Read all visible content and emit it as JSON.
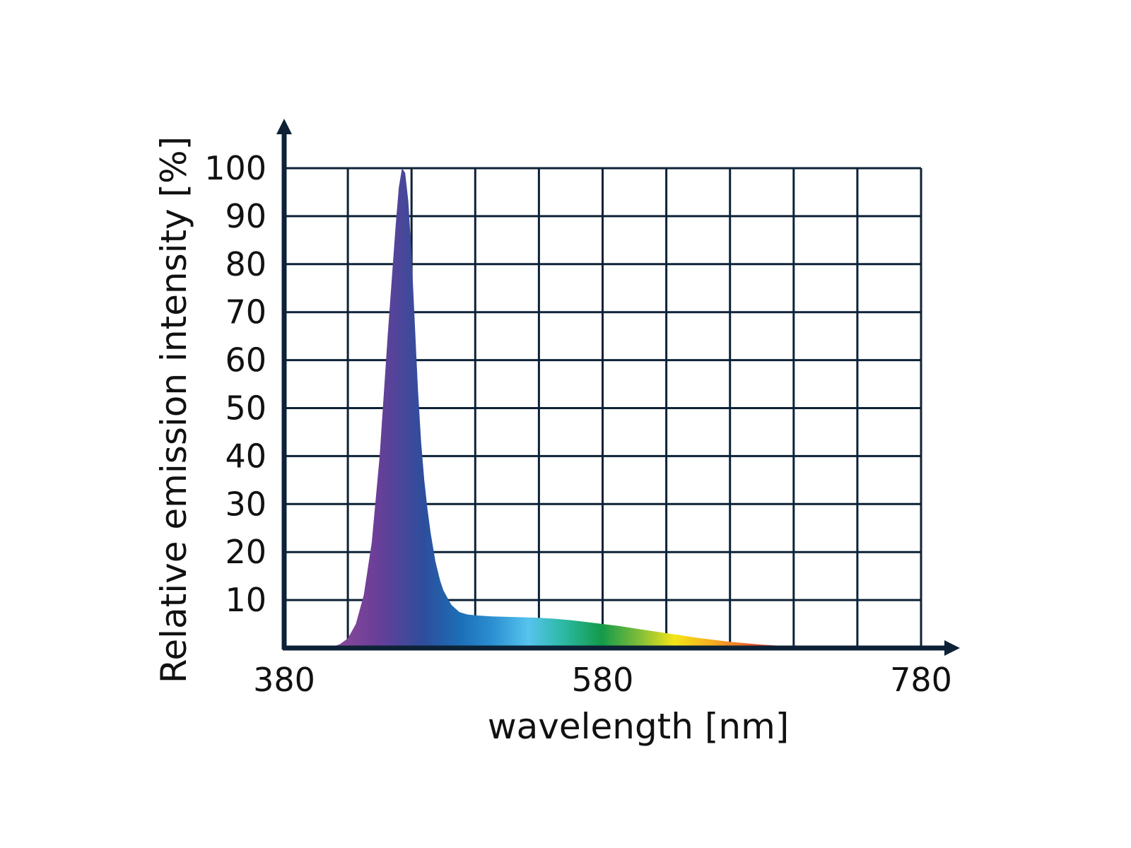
{
  "colors": {
    "axis": "#0d2236",
    "grid": "#0d2236",
    "text": "#111111",
    "spectrum": [
      {
        "offset": 0.0,
        "color": "#8a4a9a"
      },
      {
        "offset": 0.08,
        "color": "#6a3e98"
      },
      {
        "offset": 0.17,
        "color": "#2d4e9c"
      },
      {
        "offset": 0.24,
        "color": "#1c6fb6"
      },
      {
        "offset": 0.3,
        "color": "#2b8ed0"
      },
      {
        "offset": 0.37,
        "color": "#56c4ee"
      },
      {
        "offset": 0.44,
        "color": "#2bb8a0"
      },
      {
        "offset": 0.51,
        "color": "#139a4a"
      },
      {
        "offset": 0.58,
        "color": "#7cbc3a"
      },
      {
        "offset": 0.65,
        "color": "#f4e518"
      },
      {
        "offset": 0.73,
        "color": "#f5a623"
      },
      {
        "offset": 0.81,
        "color": "#e8502a"
      },
      {
        "offset": 0.9,
        "color": "#d41e2a"
      },
      {
        "offset": 1.0,
        "color": "#b3122a"
      }
    ]
  },
  "chart_data": {
    "type": "area",
    "xlabel": "wavelength [nm]",
    "ylabel": "Relative emission intensity [%]",
    "xlim": [
      380,
      780
    ],
    "ylim": [
      0,
      100
    ],
    "x_ticks": [
      380,
      580,
      780
    ],
    "y_ticks": [
      10,
      20,
      30,
      40,
      50,
      60,
      70,
      80,
      90,
      100
    ],
    "x_grid_step": 40,
    "y_grid_step": 10,
    "grid": true,
    "series": [
      {
        "x": [
          380,
          400,
          410,
          415,
          420,
          425,
          430,
          435,
          440,
          445,
          450,
          452,
          454,
          456,
          458,
          460,
          462,
          464,
          466,
          468,
          470,
          472,
          475,
          478,
          480,
          485,
          490,
          495,
          500,
          510,
          520,
          530,
          540,
          550,
          560,
          570,
          580,
          590,
          600,
          610,
          620,
          630,
          640,
          650,
          660,
          670,
          680,
          690,
          700,
          710,
          720,
          740,
          760,
          780
        ],
        "y": [
          0,
          0,
          0.2,
          0.8,
          2,
          5,
          11,
          22,
          40,
          65,
          88,
          96,
          100,
          99,
          93,
          82,
          68,
          54,
          43,
          35,
          29,
          24,
          18,
          14,
          12,
          9,
          7.5,
          7,
          6.8,
          6.6,
          6.5,
          6.4,
          6.3,
          6.1,
          5.8,
          5.4,
          5.0,
          4.6,
          4.1,
          3.6,
          3.1,
          2.6,
          2.1,
          1.7,
          1.3,
          1.0,
          0.7,
          0.5,
          0.35,
          0.25,
          0.15,
          0.05,
          0,
          0
        ]
      }
    ]
  }
}
